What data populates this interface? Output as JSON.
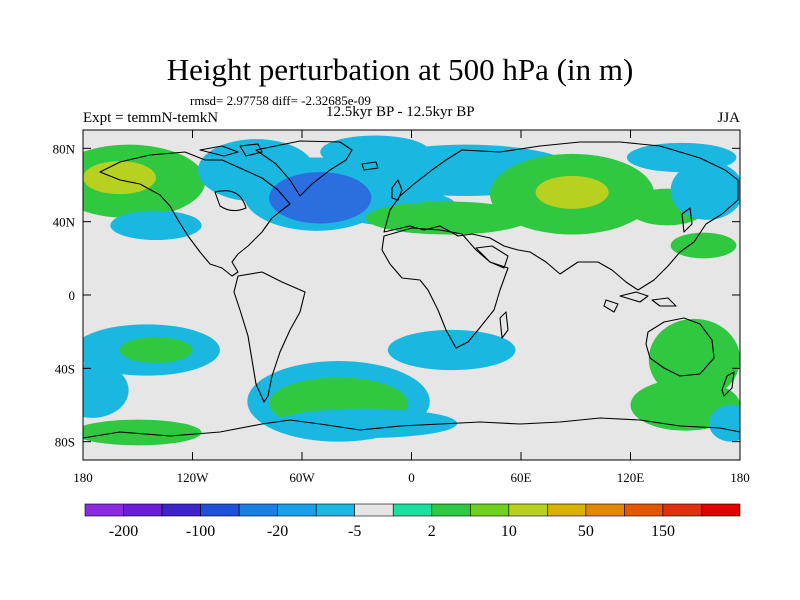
{
  "title": "Height perturbation at 500 hPa (in m)",
  "stats": "rmsd= 2.97758 diff= -2.32685e-09",
  "expt": "Expt = temmN-temkN",
  "period": "12.5kyr BP - 12.5kyr BP",
  "season": "JJA",
  "map": {
    "projection": "cylindrical-equidistant",
    "lon_range": [
      -180,
      180
    ],
    "lat_range": [
      -90,
      90
    ],
    "background_color": "#e6e6e6",
    "x_ticks": [
      {
        "lon": -180,
        "label": "180"
      },
      {
        "lon": -120,
        "label": "120W"
      },
      {
        "lon": -60,
        "label": "60W"
      },
      {
        "lon": 0,
        "label": "0"
      },
      {
        "lon": 60,
        "label": "60E"
      },
      {
        "lon": 120,
        "label": "120E"
      },
      {
        "lon": 180,
        "label": "180"
      }
    ],
    "y_ticks": [
      {
        "lat": 80,
        "label": "80N"
      },
      {
        "lat": 40,
        "label": "40N"
      },
      {
        "lat": 0,
        "label": "0"
      },
      {
        "lat": -40,
        "label": "40S"
      },
      {
        "lat": -80,
        "label": "80S"
      }
    ],
    "anomalies": [
      {
        "lon": -155,
        "lat": 62,
        "rlon": 42,
        "rlat": 20,
        "level": 1
      },
      {
        "lon": -160,
        "lat": 64,
        "rlon": 20,
        "rlat": 9,
        "level": 2
      },
      {
        "lon": -85,
        "lat": 68,
        "rlon": 32,
        "rlat": 17,
        "level": -1
      },
      {
        "lon": -52,
        "lat": 55,
        "rlon": 40,
        "rlat": 20,
        "level": -1
      },
      {
        "lon": -50,
        "lat": 53,
        "rlon": 28,
        "rlat": 14,
        "level": -2
      },
      {
        "lon": -20,
        "lat": 78,
        "rlon": 30,
        "rlat": 9,
        "level": -1
      },
      {
        "lon": -140,
        "lat": 38,
        "rlon": 25,
        "rlat": 8,
        "level": -1
      },
      {
        "lon": -10,
        "lat": 48,
        "rlon": 35,
        "rlat": 10,
        "level": -1
      },
      {
        "lon": 20,
        "lat": 42,
        "rlon": 45,
        "rlat": 9,
        "level": 1
      },
      {
        "lon": 30,
        "lat": 68,
        "rlon": 60,
        "rlat": 14,
        "level": -1
      },
      {
        "lon": 88,
        "lat": 55,
        "rlon": 45,
        "rlat": 22,
        "level": 1
      },
      {
        "lon": 88,
        "lat": 56,
        "rlon": 20,
        "rlat": 9,
        "level": 2
      },
      {
        "lon": 140,
        "lat": 48,
        "rlon": 22,
        "rlat": 10,
        "level": 1
      },
      {
        "lon": 162,
        "lat": 57,
        "rlon": 20,
        "rlat": 16,
        "level": -1
      },
      {
        "lon": 148,
        "lat": 75,
        "rlon": 30,
        "rlat": 8,
        "level": -1
      },
      {
        "lon": 160,
        "lat": 27,
        "rlon": 18,
        "rlat": 7,
        "level": 1
      },
      {
        "lon": -145,
        "lat": -30,
        "rlon": 40,
        "rlat": 14,
        "level": -1
      },
      {
        "lon": -140,
        "lat": -30,
        "rlon": 20,
        "rlat": 7,
        "level": 1
      },
      {
        "lon": -175,
        "lat": -52,
        "rlon": 20,
        "rlat": 15,
        "level": -1
      },
      {
        "lon": -40,
        "lat": -58,
        "rlon": 50,
        "rlat": 22,
        "level": -1
      },
      {
        "lon": -40,
        "lat": -59,
        "rlon": 38,
        "rlat": 14,
        "level": 1
      },
      {
        "lon": 22,
        "lat": -30,
        "rlon": 35,
        "rlat": 11,
        "level": -1
      },
      {
        "lon": -25,
        "lat": -70,
        "rlon": 50,
        "rlat": 8,
        "level": -1
      },
      {
        "lon": -150,
        "lat": -75,
        "rlon": 35,
        "rlat": 7,
        "level": 1
      },
      {
        "lon": 155,
        "lat": -35,
        "rlon": 25,
        "rlat": 22,
        "level": 1
      },
      {
        "lon": 150,
        "lat": -60,
        "rlon": 30,
        "rlat": 14,
        "level": 1
      },
      {
        "lon": 175,
        "lat": -70,
        "rlon": 12,
        "rlat": 10,
        "level": -1
      }
    ]
  },
  "colorbar": {
    "colors": [
      "#8a2be2",
      "#6a1fd6",
      "#3c24c8",
      "#2050d8",
      "#1a7fe0",
      "#1aa0e8",
      "#1ab8e0",
      "#e6e6e6",
      "#1ae0a0",
      "#30c840",
      "#70d020",
      "#b8d020",
      "#d8b000",
      "#e08800",
      "#e05800",
      "#e03010",
      "#e00000"
    ],
    "labels": [
      "-200",
      "-100",
      "-20",
      "-5",
      "2",
      "10",
      "50",
      "150"
    ]
  },
  "level_colors": {
    "-2": "#2a6ee0",
    "-1": "#1ab8e0",
    "1": "#30c840",
    "2": "#b8d020"
  }
}
